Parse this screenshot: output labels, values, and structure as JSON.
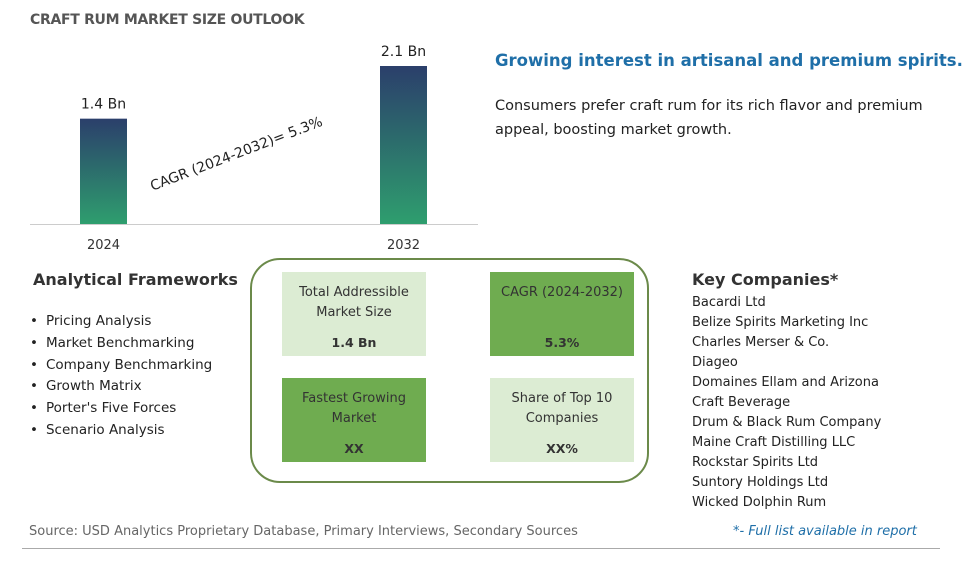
{
  "chart_data": {
    "type": "bar",
    "title": "CRAFT RUM MARKET SIZE OUTLOOK",
    "categories": [
      "2024",
      "2032"
    ],
    "values": [
      1.4,
      2.1
    ],
    "value_labels": [
      "1.4 Bn",
      "2.1 Bn"
    ],
    "annotation": "CAGR (2024-2032)=  5.3%",
    "color": [
      "#2e9e6e",
      "#2b3f6b"
    ]
  },
  "headline": "Growing interest in artisanal and premium spirits.",
  "description": "Consumers prefer craft rum for its rich flavor and premium appeal, boosting market growth.",
  "frameworks": {
    "title": "Analytical Frameworks",
    "items": [
      "Pricing Analysis",
      "Market Benchmarking",
      "Company Benchmarking",
      "Growth Matrix",
      "Porter's Five Forces",
      "Scenario Analysis"
    ]
  },
  "metrics": [
    {
      "label": "Total Addressible Market Size",
      "value": "1.4 Bn"
    },
    {
      "label": "CAGR (2024-2032)",
      "value": "5.3%"
    },
    {
      "label": "Fastest Growing Market",
      "value": "XX"
    },
    {
      "label": "Share of Top 10 Companies",
      "value": "XX%"
    }
  ],
  "companies": {
    "title": "Key Companies*",
    "items": [
      "Bacardi Ltd",
      "Belize Spirits Marketing Inc",
      "Charles Merser & Co.",
      "Diageo",
      "Domaines Ellam and Arizona Craft Beverage",
      "Drum & Black Rum Company",
      "Maine Craft Distilling LLC",
      "Rockstar Spirits Ltd",
      "Suntory Holdings Ltd",
      "Wicked Dolphin Rum"
    ]
  },
  "source": "Source: USD Analytics Proprietary Database, Primary Interviews, Secondary Sources",
  "note": "*- Full list available in report"
}
